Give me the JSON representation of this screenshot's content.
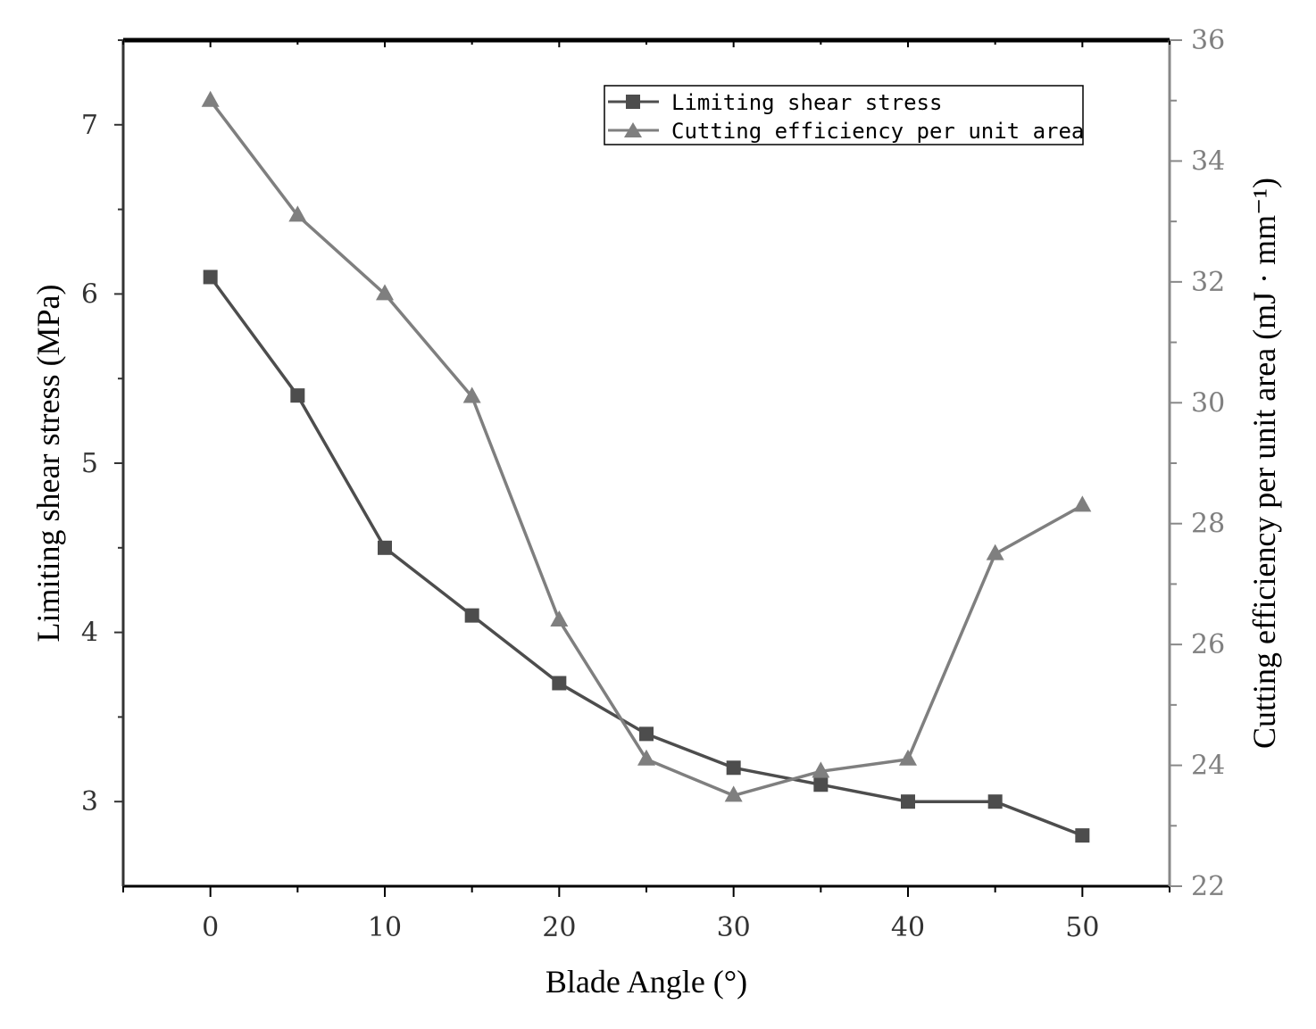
{
  "chart_data": {
    "type": "line",
    "xlabel": "Blade Angle (°)",
    "ylabel_left": "Limiting shear stress (MPa)",
    "ylabel_right": "Cutting efficiency per unit area (mJ · mm⁻¹)",
    "x_ticks": [
      "0",
      "10",
      "20",
      "30",
      "40",
      "50"
    ],
    "y_left_ticks": [
      "3",
      "4",
      "5",
      "6",
      "7"
    ],
    "y_right_ticks": [
      "22",
      "24",
      "26",
      "28",
      "30",
      "32",
      "34",
      "36"
    ],
    "xlim": [
      -5,
      55
    ],
    "ylim_left": [
      2.5,
      7.5
    ],
    "ylim_right": [
      22,
      36
    ],
    "legend_position": "top-right",
    "grid": false,
    "series": [
      {
        "name": "Limiting shear stress",
        "axis": "left",
        "marker": "square",
        "color": "#4d4d4d",
        "x": [
          0,
          5,
          10,
          15,
          20,
          25,
          30,
          35,
          40,
          45,
          50
        ],
        "y": [
          6.1,
          5.4,
          4.5,
          4.1,
          3.7,
          3.4,
          3.2,
          3.1,
          3.0,
          3.0,
          2.8
        ]
      },
      {
        "name": "Cutting efficiency per unit area",
        "axis": "right",
        "marker": "triangle",
        "color": "#7f7f7f",
        "x": [
          0,
          5,
          10,
          15,
          20,
          25,
          30,
          35,
          40,
          45,
          50
        ],
        "y": [
          35.0,
          33.1,
          31.8,
          30.1,
          26.4,
          24.1,
          23.5,
          23.9,
          24.1,
          27.5,
          28.3
        ]
      }
    ]
  }
}
